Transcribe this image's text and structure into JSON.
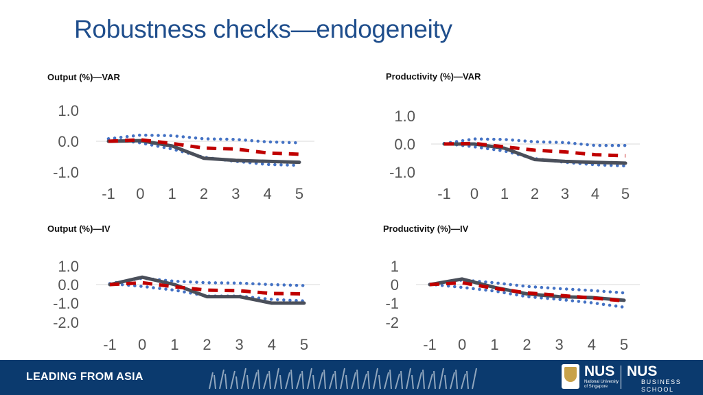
{
  "page": {
    "title": "Robustness checks—endogeneity"
  },
  "footer": {
    "slogan": "LEADING FROM ASIA",
    "logo_nus": "NUS",
    "logo_nus_small_1": "National University",
    "logo_nus_small_2": "of Singapore",
    "logo_bs_nus": "NUS",
    "logo_bs_line1": "BUSINESS",
    "logo_bs_line2": "SCHOOL"
  },
  "colors": {
    "solid": "#4a4f5a",
    "dashed": "#c00000",
    "dotted": "#4472c4",
    "title": "#1f4e8c",
    "footer": "#0b3a6e"
  },
  "chart_data": [
    {
      "type": "line",
      "title": "Output (%)—VAR",
      "x": [
        -1,
        0,
        1,
        2,
        3,
        4,
        5
      ],
      "xticks": [
        "-1",
        "0",
        "1",
        "2",
        "3",
        "4",
        "5"
      ],
      "yticks": [
        "1.0",
        "0.0",
        "-1.0"
      ],
      "ytick_values": [
        1.0,
        0.0,
        -1.0
      ],
      "ylim": [
        -1.0,
        1.0
      ],
      "series": [
        {
          "style": "solid",
          "values": [
            0,
            0.02,
            -0.15,
            -0.55,
            -0.62,
            -0.65,
            -0.68
          ]
        },
        {
          "style": "dashed",
          "values": [
            0,
            0.05,
            -0.07,
            -0.22,
            -0.25,
            -0.38,
            -0.42
          ]
        },
        {
          "style": "dotted",
          "values": [
            0.08,
            0.2,
            0.18,
            0.08,
            0.06,
            -0.02,
            -0.05
          ]
        },
        {
          "style": "dotted",
          "values": [
            0.08,
            -0.05,
            -0.25,
            -0.52,
            -0.65,
            -0.75,
            -0.78
          ]
        }
      ]
    },
    {
      "type": "line",
      "title": "Productivity (%)—VAR",
      "x": [
        -1,
        0,
        1,
        2,
        3,
        4,
        5
      ],
      "xticks": [
        "-1",
        "0",
        "1",
        "2",
        "3",
        "4",
        "5"
      ],
      "yticks": [
        "1.0",
        "0.0",
        "-1.0"
      ],
      "ytick_values": [
        1.0,
        0.0,
        -1.0
      ],
      "ylim": [
        -1.0,
        1.0
      ],
      "series": [
        {
          "style": "solid",
          "values": [
            0,
            0,
            -0.15,
            -0.55,
            -0.62,
            -0.65,
            -0.68
          ]
        },
        {
          "style": "dashed",
          "values": [
            0,
            0.02,
            -0.1,
            -0.22,
            -0.28,
            -0.38,
            -0.42
          ]
        },
        {
          "style": "dotted",
          "values": [
            0.02,
            0.18,
            0.16,
            0.08,
            0.05,
            -0.05,
            -0.05
          ]
        },
        {
          "style": "dotted",
          "values": [
            0.02,
            -0.1,
            -0.25,
            -0.52,
            -0.65,
            -0.74,
            -0.78
          ]
        }
      ]
    },
    {
      "type": "line",
      "title": "Output (%)—IV",
      "x": [
        -1,
        0,
        1,
        2,
        3,
        4,
        5
      ],
      "xticks": [
        "-1",
        "0",
        "1",
        "2",
        "3",
        "4",
        "5"
      ],
      "yticks": [
        "1.0",
        "0.0",
        "-1.0",
        "-2.0"
      ],
      "ytick_values": [
        1.0,
        0.0,
        -1.0,
        -2.0
      ],
      "ylim": [
        -2.0,
        1.0
      ],
      "series": [
        {
          "style": "solid",
          "values": [
            0,
            0.4,
            0,
            -0.65,
            -0.65,
            -1.0,
            -1.0
          ]
        },
        {
          "style": "dashed",
          "values": [
            0,
            0.1,
            -0.12,
            -0.3,
            -0.33,
            -0.48,
            -0.5
          ]
        },
        {
          "style": "dotted",
          "values": [
            0.05,
            0.35,
            0.18,
            0.1,
            0.08,
            0.0,
            -0.05
          ]
        },
        {
          "style": "dotted",
          "values": [
            0.05,
            -0.1,
            -0.3,
            -0.62,
            -0.62,
            -0.8,
            -0.88
          ]
        }
      ]
    },
    {
      "type": "line",
      "title": "Productivity (%)—IV",
      "x": [
        -1,
        0,
        1,
        2,
        3,
        4,
        5
      ],
      "xticks": [
        "-1",
        "0",
        "1",
        "2",
        "3",
        "4",
        "5"
      ],
      "yticks": [
        "1",
        "0",
        "-1",
        "-2"
      ],
      "ytick_values": [
        1,
        0,
        -1,
        -2
      ],
      "ylim": [
        -2,
        1
      ],
      "series": [
        {
          "style": "solid",
          "values": [
            0,
            0.3,
            -0.15,
            -0.5,
            -0.65,
            -0.7,
            -0.85
          ]
        },
        {
          "style": "dashed",
          "values": [
            0,
            0.1,
            -0.2,
            -0.45,
            -0.58,
            -0.72,
            -0.88
          ]
        },
        {
          "style": "dotted",
          "values": [
            0.02,
            0.25,
            0.1,
            -0.1,
            -0.22,
            -0.32,
            -0.45
          ]
        },
        {
          "style": "dotted",
          "values": [
            0.02,
            -0.15,
            -0.35,
            -0.65,
            -0.8,
            -0.98,
            -1.22
          ]
        }
      ]
    }
  ]
}
